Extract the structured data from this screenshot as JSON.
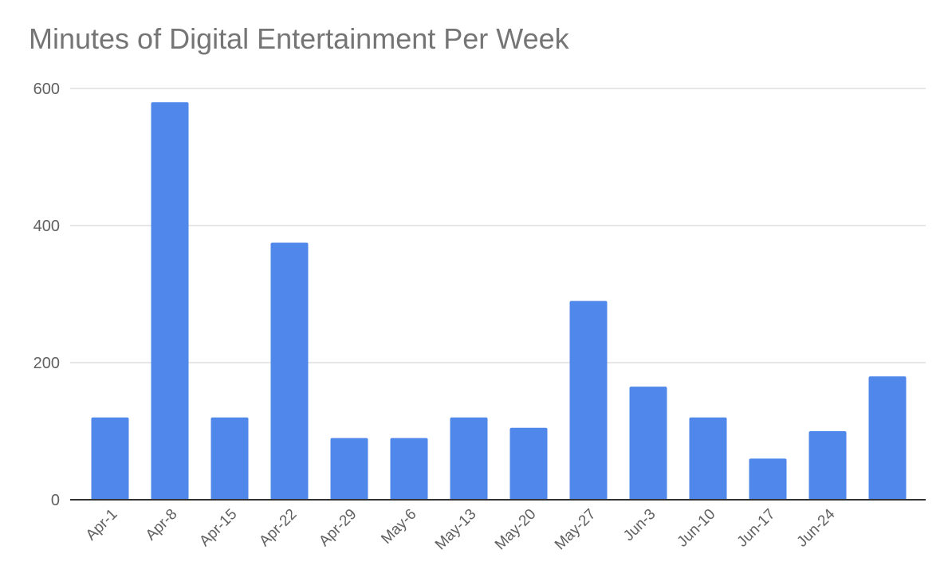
{
  "chart_data": {
    "type": "bar",
    "title": "Minutes of Digital Entertainment Per Week",
    "xlabel": "",
    "ylabel": "",
    "ylim": [
      0,
      600
    ],
    "yticks": [
      0,
      200,
      400,
      600
    ],
    "categories": [
      "Apr-1",
      "Apr-8",
      "Apr-15",
      "Apr-22",
      "Apr-29",
      "May-6",
      "May-13",
      "May-20",
      "May-27",
      "Jun-3",
      "Jun-10",
      "Jun-17",
      "Jun-24",
      ""
    ],
    "values": [
      120,
      580,
      120,
      375,
      90,
      90,
      120,
      105,
      290,
      165,
      120,
      60,
      100,
      180
    ],
    "bar_color": "#4f87ea",
    "grid": true,
    "legend": "none"
  }
}
